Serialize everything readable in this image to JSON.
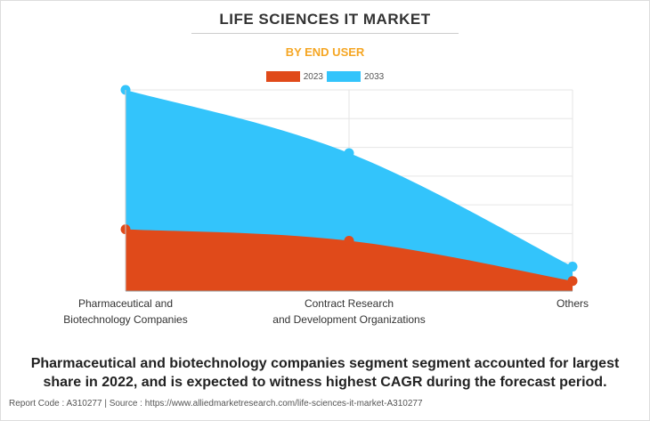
{
  "title": "LIFE SCIENCES IT MARKET",
  "subtitle": "BY END USER",
  "caption": "Pharmaceutical and biotechnology companies segment segment accounted for largest share in 2022, and is expected to witness highest CAGR during the forecast period.",
  "footer": {
    "report_code": "Report Code : A310277",
    "separator": "|",
    "source": "Source : https://www.alliedmarketresearch.com/life-sciences-it-market-A310277"
  },
  "colors": {
    "series_2023": "#e04a1a",
    "series_2033": "#33c4fb",
    "title": "#333333",
    "subtitle": "#f5a623"
  },
  "chart_data": {
    "type": "area",
    "categories": [
      [
        "Pharmaceutical and",
        "Biotechnology Companies"
      ],
      [
        "Contract Research",
        "and Development Organizations"
      ],
      [
        "Others"
      ]
    ],
    "series": [
      {
        "name": "2033",
        "values": [
          7.0,
          4.8,
          0.85
        ]
      },
      {
        "name": "2023",
        "values": [
          2.15,
          1.75,
          0.35
        ]
      }
    ],
    "ylim": [
      0,
      7
    ],
    "grid": true,
    "legend_position": "top-center",
    "y_tick_labels_visible": false
  }
}
